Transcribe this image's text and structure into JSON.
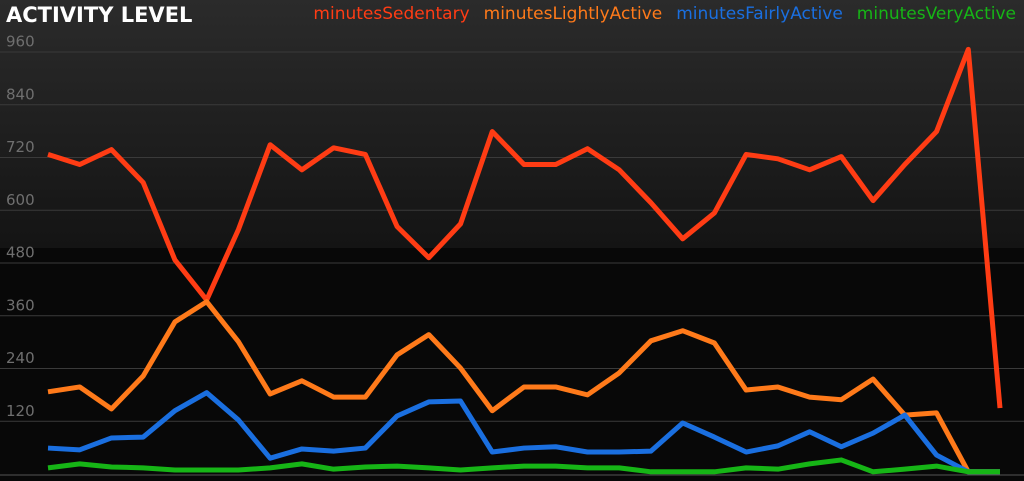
{
  "chart_data": {
    "type": "line",
    "title": "ACTIVITY LEVEL",
    "categories": [
      null,
      null,
      null,
      null,
      null,
      null,
      null,
      null,
      null,
      null,
      null,
      null,
      null,
      null,
      null,
      null,
      null,
      null,
      null,
      null,
      null,
      null,
      null,
      null,
      null,
      null,
      null,
      null,
      null,
      null,
      null
    ],
    "series": [
      {
        "name": "minutesSedentary",
        "color": "#ff3c14",
        "values": [
          727,
          704,
          738,
          663,
          487,
          396,
          556,
          749,
          692,
          742,
          727,
          563,
          492,
          569,
          779,
          704,
          704,
          740,
          692,
          617,
          535,
          594,
          727,
          717,
          692,
          722,
          622,
          704,
          779,
          966,
          150
        ]
      },
      {
        "name": "minutesLightlyActive",
        "color": "#ff7a1a",
        "values": [
          187,
          198,
          148,
          223,
          346,
          392,
          301,
          182,
          212,
          175,
          175,
          271,
          317,
          241,
          144,
          198,
          198,
          180,
          230,
          303,
          326,
          298,
          191,
          198,
          175,
          169,
          216,
          134,
          139,
          5,
          5
        ]
      },
      {
        "name": "minutesFairlyActive",
        "color": "#1a6fe0",
        "values": [
          59,
          55,
          82,
          84,
          144,
          185,
          123,
          36,
          57,
          52,
          59,
          132,
          164,
          166,
          50,
          59,
          62,
          50,
          50,
          52,
          116,
          84,
          50,
          64,
          96,
          62,
          93,
          134,
          43,
          5,
          5
        ]
      },
      {
        "name": "minutesVeryActive",
        "color": "#16b516",
        "values": [
          14,
          23,
          16,
          14,
          9,
          9,
          9,
          14,
          23,
          11,
          16,
          18,
          14,
          9,
          14,
          18,
          18,
          14,
          14,
          5,
          5,
          5,
          14,
          11,
          23,
          32,
          5,
          11,
          18,
          5,
          5
        ]
      }
    ],
    "ylim": [
      0,
      960
    ],
    "yticks": [
      120,
      240,
      360,
      480,
      600,
      720,
      840,
      960
    ],
    "grid": true
  }
}
